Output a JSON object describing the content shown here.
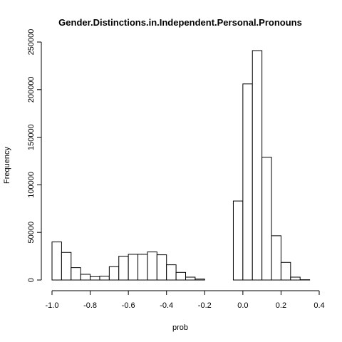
{
  "chart_data": {
    "type": "bar",
    "subtype": "histogram",
    "title": "Gender.Distinctions.in.Independent.Personal.Pronouns",
    "xlabel": "prob",
    "ylabel": "Frequency",
    "xlim": [
      -1.0,
      0.4
    ],
    "ylim": [
      0,
      250000
    ],
    "grid": false,
    "bar_fill": "#ffffff",
    "bar_stroke": "#000000",
    "x_ticks": [
      -1.0,
      -0.8,
      -0.6,
      -0.4,
      -0.2,
      0.0,
      0.2,
      0.4
    ],
    "x_tick_labels": [
      "-1.0",
      "-0.8",
      "-0.6",
      "-0.4",
      "-0.2",
      "0.0",
      "0.2",
      "0.4"
    ],
    "y_ticks": [
      0,
      50000,
      100000,
      150000,
      200000,
      250000
    ],
    "y_tick_labels": [
      "0",
      "50000",
      "100000",
      "150000",
      "200000",
      "250000"
    ],
    "bins": [
      {
        "x0": -1.0,
        "x1": -0.95,
        "value": 40000
      },
      {
        "x0": -0.95,
        "x1": -0.9,
        "value": 29000
      },
      {
        "x0": -0.9,
        "x1": -0.85,
        "value": 13000
      },
      {
        "x0": -0.85,
        "x1": -0.8,
        "value": 6000
      },
      {
        "x0": -0.8,
        "x1": -0.75,
        "value": 3500
      },
      {
        "x0": -0.75,
        "x1": -0.7,
        "value": 4000
      },
      {
        "x0": -0.7,
        "x1": -0.65,
        "value": 14000
      },
      {
        "x0": -0.65,
        "x1": -0.6,
        "value": 25000
      },
      {
        "x0": -0.6,
        "x1": -0.55,
        "value": 27000
      },
      {
        "x0": -0.55,
        "x1": -0.5,
        "value": 27000
      },
      {
        "x0": -0.5,
        "x1": -0.45,
        "value": 29500
      },
      {
        "x0": -0.45,
        "x1": -0.4,
        "value": 26500
      },
      {
        "x0": -0.4,
        "x1": -0.35,
        "value": 16000
      },
      {
        "x0": -0.35,
        "x1": -0.3,
        "value": 8000
      },
      {
        "x0": -0.3,
        "x1": -0.25,
        "value": 3000
      },
      {
        "x0": -0.25,
        "x1": -0.2,
        "value": 1000
      },
      {
        "x0": -0.2,
        "x1": -0.15,
        "value": 0
      },
      {
        "x0": -0.15,
        "x1": -0.1,
        "value": 0
      },
      {
        "x0": -0.1,
        "x1": -0.05,
        "value": 0
      },
      {
        "x0": -0.05,
        "x1": 0.0,
        "value": 83000
      },
      {
        "x0": 0.0,
        "x1": 0.05,
        "value": 206000
      },
      {
        "x0": 0.05,
        "x1": 0.1,
        "value": 241000
      },
      {
        "x0": 0.1,
        "x1": 0.15,
        "value": 129000
      },
      {
        "x0": 0.15,
        "x1": 0.2,
        "value": 46500
      },
      {
        "x0": 0.2,
        "x1": 0.25,
        "value": 18500
      },
      {
        "x0": 0.25,
        "x1": 0.3,
        "value": 3000
      },
      {
        "x0": 0.3,
        "x1": 0.35,
        "value": 300
      }
    ]
  }
}
